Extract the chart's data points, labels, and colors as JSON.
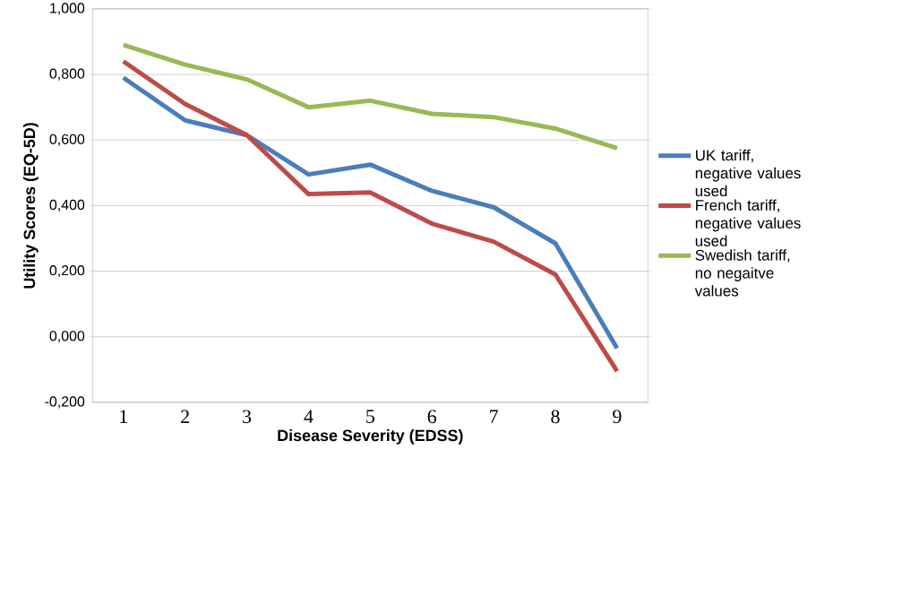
{
  "chart_data": {
    "type": "line",
    "xlabel": "Disease Severity (EDSS)",
    "ylabel": "Utility Scores (EQ-5D)",
    "categories": [
      "1",
      "2",
      "3",
      "4",
      "5",
      "6",
      "7",
      "8",
      "9"
    ],
    "series": [
      {
        "name": "UK tariff, negative values used",
        "color": "#4a7ebb",
        "values": [
          0.79,
          0.66,
          0.615,
          0.495,
          0.525,
          0.445,
          0.395,
          0.285,
          -0.035
        ]
      },
      {
        "name": "French tariff, negative values used",
        "color": "#be4b48",
        "values": [
          0.84,
          0.71,
          0.615,
          0.435,
          0.44,
          0.345,
          0.29,
          0.19,
          -0.105
        ]
      },
      {
        "name": "Swedish tariff, no negaitve values",
        "color": "#98b954",
        "values": [
          0.89,
          0.83,
          0.785,
          0.7,
          0.72,
          0.68,
          0.67,
          0.635,
          0.575
        ]
      }
    ],
    "ylim": [
      -0.2,
      1.0
    ],
    "yticks": [
      {
        "value": -0.2,
        "label": "-0,200"
      },
      {
        "value": 0,
        "label": "0,000"
      },
      {
        "value": 0.2,
        "label": "0,200"
      },
      {
        "value": 0.4,
        "label": "0,400"
      },
      {
        "value": 0.6,
        "label": "0,600"
      },
      {
        "value": 0.8,
        "label": "0,800"
      },
      {
        "value": 1.0,
        "label": "1,000"
      }
    ],
    "grid": "y",
    "legend": "right",
    "marker": "none",
    "line_style": "solid"
  }
}
